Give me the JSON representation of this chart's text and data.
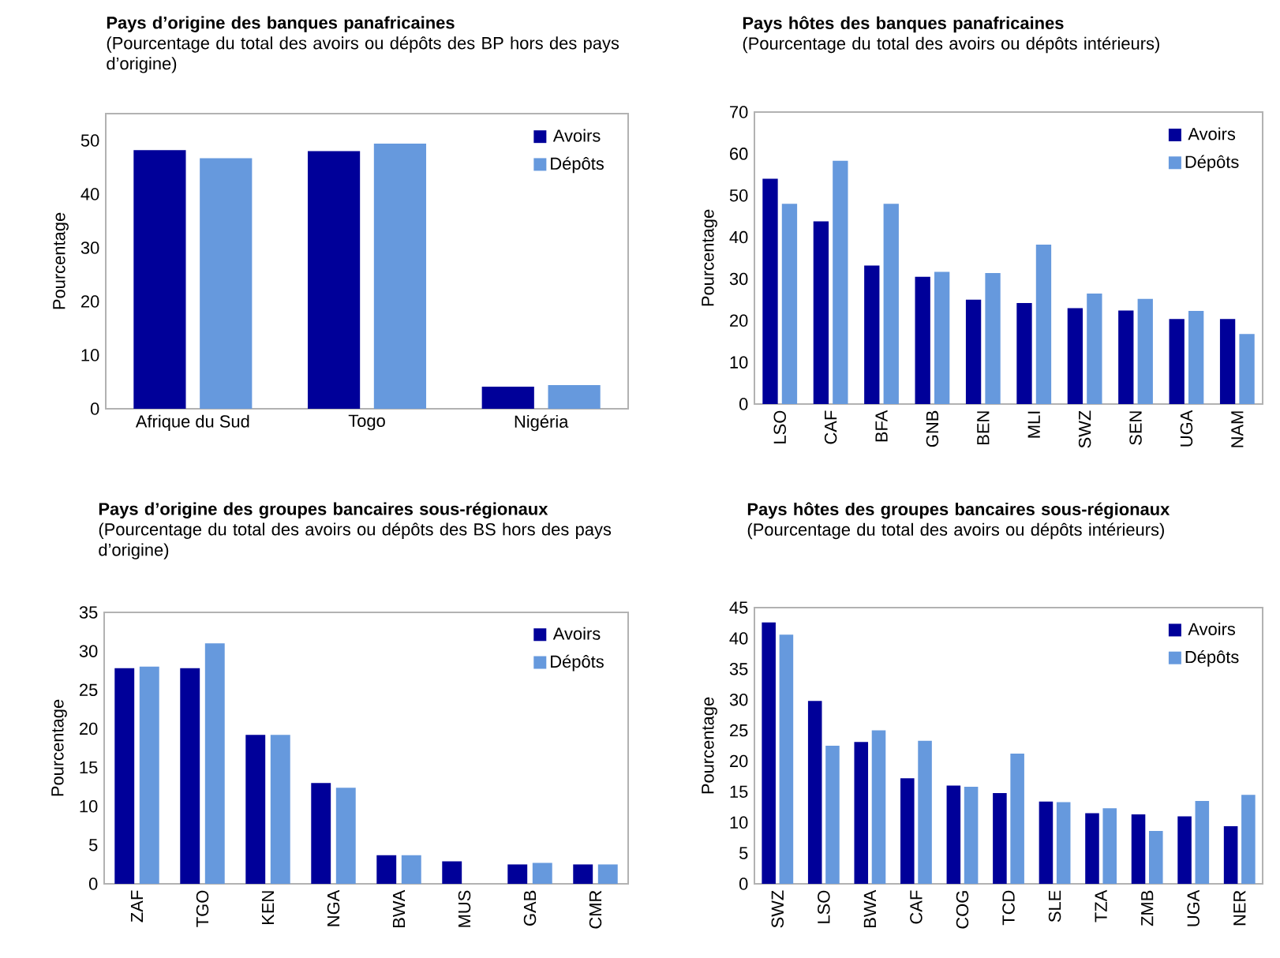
{
  "chart_data": [
    {
      "type": "bar",
      "title": "Pays d’origine des banques panafricaines",
      "subtitle": "(Pourcentage du total des avoirs ou dépôts des BP hors des pays d’origine)",
      "ylabel": "Pourcentage",
      "categories": [
        "Afrique du Sud",
        "Togo",
        "Nigéria"
      ],
      "series": [
        {
          "name": "Avoirs",
          "color": "#000099",
          "values": [
            48.2,
            48.0,
            4.1
          ]
        },
        {
          "name": "Dépôts",
          "color": "#6699dd",
          "values": [
            46.7,
            49.4,
            4.4
          ]
        }
      ],
      "ylim": [
        0,
        55
      ],
      "yticks": [
        0,
        10,
        20,
        30,
        40,
        50
      ],
      "legend": "top right"
    },
    {
      "type": "bar",
      "title": "Pays hôtes des banques panafricaines",
      "subtitle": "(Pourcentage du total des avoirs ou dépôts intérieurs)",
      "ylabel": "Pourcentage",
      "categories": [
        "LSO",
        "CAF",
        "BFA",
        "GNB",
        "BEN",
        "MLI",
        "SWZ",
        "SEN",
        "UGA",
        "NAM"
      ],
      "series": [
        {
          "name": "Avoirs",
          "color": "#000099",
          "values": [
            54.0,
            43.8,
            33.2,
            30.5,
            25.0,
            24.2,
            23.0,
            22.4,
            20.4,
            20.4
          ]
        },
        {
          "name": "Dépôts",
          "color": "#6699dd",
          "values": [
            48.0,
            58.3,
            48.0,
            31.7,
            31.4,
            38.2,
            26.5,
            25.2,
            22.3,
            16.8
          ]
        }
      ],
      "ylim": [
        0,
        70
      ],
      "yticks": [
        0,
        10,
        20,
        30,
        40,
        50,
        60,
        70
      ],
      "legend": "top right"
    },
    {
      "type": "bar",
      "title": "Pays d’origine des groupes bancaires sous-régionaux",
      "subtitle": "(Pourcentage du total des avoirs ou dépôts des BS hors des pays d’origine)",
      "ylabel": "Pourcentage",
      "categories": [
        "ZAF",
        "TGO",
        "KEN",
        "NGA",
        "BWA",
        "MUS",
        "GAB",
        "CMR"
      ],
      "series": [
        {
          "name": "Avoirs",
          "color": "#000099",
          "values": [
            27.8,
            27.8,
            19.2,
            13.0,
            3.7,
            2.9,
            2.5,
            2.5
          ]
        },
        {
          "name": "Dépôts",
          "color": "#6699dd",
          "values": [
            28.0,
            31.0,
            19.2,
            12.4,
            3.7,
            null,
            2.7,
            2.5
          ]
        }
      ],
      "ylim": [
        0,
        35
      ],
      "yticks": [
        0,
        5,
        10,
        15,
        20,
        25,
        30,
        35
      ],
      "legend": "top right"
    },
    {
      "type": "bar",
      "title": "Pays hôtes des groupes bancaires sous-régionaux",
      "subtitle": "(Pourcentage du total des avoirs ou dépôts intérieurs)",
      "ylabel": "Pourcentage",
      "categories": [
        "SWZ",
        "LSO",
        "BWA",
        "CAF",
        "COG",
        "TCD",
        "SLE",
        "TZA",
        "ZMB",
        "UGA",
        "NER"
      ],
      "series": [
        {
          "name": "Avoirs",
          "color": "#000099",
          "values": [
            42.6,
            29.8,
            23.1,
            17.2,
            16.0,
            14.8,
            13.4,
            11.5,
            11.3,
            11.0,
            9.4
          ]
        },
        {
          "name": "Dépôts",
          "color": "#6699dd",
          "values": [
            40.6,
            22.5,
            25.0,
            23.3,
            15.8,
            21.2,
            13.3,
            12.3,
            8.6,
            13.5,
            14.5
          ]
        }
      ],
      "ylim": [
        0,
        45
      ],
      "yticks": [
        0,
        5,
        10,
        15,
        20,
        25,
        30,
        35,
        40,
        45
      ],
      "legend": "top right"
    }
  ]
}
